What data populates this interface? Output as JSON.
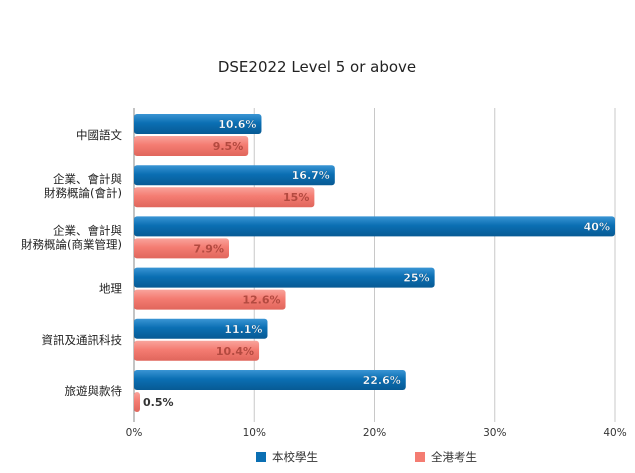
{
  "chart_data": {
    "type": "bar",
    "orientation": "horizontal",
    "title": "DSE2022 Level 5 or above",
    "categories": [
      "中國語文",
      "企業、會計與\n財務概論(會計)",
      "企業、會計與\n財務概論(商業管理)",
      "地理",
      "資訊及通訊科技",
      "旅遊與款待"
    ],
    "series": [
      {
        "name": "本校學生",
        "color": "#0b6fb3",
        "values": [
          10.6,
          16.7,
          40,
          25,
          11.1,
          22.6
        ],
        "labels": [
          "10.6%",
          "16.7%",
          "40%",
          "25%",
          "11.1%",
          "22.6%"
        ]
      },
      {
        "name": "全港考生",
        "color": "#f47c72",
        "values": [
          9.5,
          15,
          7.9,
          12.6,
          10.4,
          0.5
        ],
        "labels": [
          "9.5%",
          "15%",
          "7.9%",
          "12.6%",
          "10.4%",
          "0.5%"
        ]
      }
    ],
    "xlim": [
      0,
      40
    ],
    "xticks": [
      "0%",
      "10%",
      "20%",
      "30%",
      "40%"
    ],
    "grid": true,
    "legend_position": "bottom"
  }
}
